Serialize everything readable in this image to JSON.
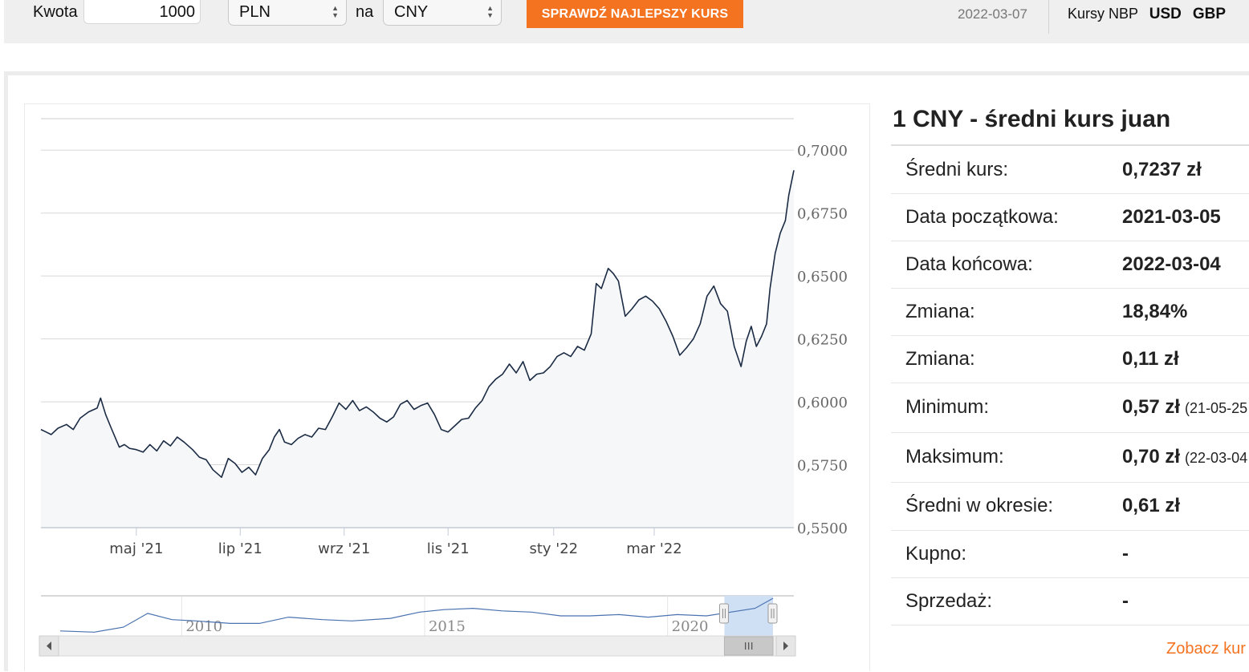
{
  "converter": {
    "amount_label": "Kwota",
    "amount_value": "1000",
    "from_currency": "PLN",
    "to_label": "na",
    "to_currency": "CNY",
    "check_button": "SPRAWDŹ NAJLEPSZY KURS",
    "date": "2022-03-07",
    "nbp_label": "Kursy NBP",
    "nbp_links": [
      "USD",
      "GBP"
    ]
  },
  "info": {
    "title": "1 CNY - średni kurs juan",
    "rows": [
      {
        "label": "Średni kurs:",
        "value": "0,7237 zł",
        "sub": ""
      },
      {
        "label": "Data początkowa:",
        "value": "2021-03-05",
        "sub": ""
      },
      {
        "label": "Data końcowa:",
        "value": "2022-03-04",
        "sub": ""
      },
      {
        "label": "Zmiana:",
        "value": "18,84%",
        "sub": ""
      },
      {
        "label": "Zmiana:",
        "value": "0,11 zł",
        "sub": ""
      },
      {
        "label": "Minimum:",
        "value": "0,57 zł",
        "sub": "(21-05-25"
      },
      {
        "label": "Maksimum:",
        "value": "0,70 zł",
        "sub": "(22-03-04"
      },
      {
        "label": "Średni w okresie:",
        "value": "0,61 zł",
        "sub": ""
      },
      {
        "label": "Kupno:",
        "value": "-",
        "sub": ""
      },
      {
        "label": "Sprzedaż:",
        "value": "-",
        "sub": ""
      }
    ],
    "see_more": "Zobacz kur"
  },
  "colors": {
    "accent": "#f47321",
    "line": "#1b2b44",
    "area": "#f5f7f8",
    "navigator_line": "#4a72b0",
    "navigator_selection": "#cfe0f5"
  },
  "chart_data": {
    "type": "line",
    "title": "",
    "xlabel": "",
    "ylabel": "",
    "ylim": [
      0.55,
      0.7125
    ],
    "y_ticks": [
      "0,5500",
      "0,5750",
      "0,6000",
      "0,6250",
      "0,6500",
      "0,6750",
      "0,7000"
    ],
    "x_ticks": [
      "maj '21",
      "lip '21",
      "wrz '21",
      "lis '21",
      "sty '22",
      "mar '22"
    ],
    "grid": true,
    "series": [
      {
        "values": [
          [
            0,
            0.589
          ],
          [
            3,
            0.588
          ],
          [
            6,
            0.587
          ],
          [
            10,
            0.5895
          ],
          [
            15,
            0.591
          ],
          [
            19,
            0.589
          ],
          [
            23,
            0.5935
          ],
          [
            28,
            0.596
          ],
          [
            33,
            0.5975
          ],
          [
            35,
            0.6015
          ],
          [
            38,
            0.595
          ],
          [
            41,
            0.59
          ],
          [
            46,
            0.582
          ],
          [
            49,
            0.583
          ],
          [
            52,
            0.5815
          ],
          [
            56,
            0.581
          ],
          [
            60,
            0.58
          ],
          [
            64,
            0.583
          ],
          [
            68,
            0.5805
          ],
          [
            72,
            0.5845
          ],
          [
            76,
            0.5825
          ],
          [
            80,
            0.586
          ],
          [
            84,
            0.584
          ],
          [
            89,
            0.581
          ],
          [
            93,
            0.578
          ],
          [
            97,
            0.577
          ],
          [
            101,
            0.573
          ],
          [
            106,
            0.57
          ],
          [
            110,
            0.5775
          ],
          [
            114,
            0.5755
          ],
          [
            118,
            0.572
          ],
          [
            122,
            0.574
          ],
          [
            126,
            0.571
          ],
          [
            130,
            0.5775
          ],
          [
            134,
            0.581
          ],
          [
            137,
            0.586
          ],
          [
            140,
            0.589
          ],
          [
            143,
            0.584
          ],
          [
            147,
            0.583
          ],
          [
            151,
            0.5855
          ],
          [
            155,
            0.587
          ],
          [
            159,
            0.586
          ],
          [
            163,
            0.5895
          ],
          [
            167,
            0.589
          ],
          [
            171,
            0.594
          ],
          [
            175,
            0.5995
          ],
          [
            179,
            0.597
          ],
          [
            183,
            0.6005
          ],
          [
            187,
            0.5965
          ],
          [
            191,
            0.598
          ],
          [
            195,
            0.596
          ],
          [
            199,
            0.5935
          ],
          [
            203,
            0.592
          ],
          [
            207,
            0.594
          ],
          [
            211,
            0.599
          ],
          [
            215,
            0.6005
          ],
          [
            219,
            0.597
          ],
          [
            223,
            0.5985
          ],
          [
            227,
            0.5995
          ],
          [
            231,
            0.595
          ],
          [
            235,
            0.589
          ],
          [
            239,
            0.588
          ],
          [
            243,
            0.5905
          ],
          [
            247,
            0.593
          ],
          [
            251,
            0.5935
          ],
          [
            255,
            0.5975
          ],
          [
            259,
            0.6005
          ],
          [
            263,
            0.606
          ],
          [
            267,
            0.609
          ],
          [
            271,
            0.611
          ],
          [
            275,
            0.615
          ],
          [
            279,
            0.6115
          ],
          [
            283,
            0.616
          ],
          [
            287,
            0.6085
          ],
          [
            291,
            0.611
          ],
          [
            295,
            0.6115
          ],
          [
            299,
            0.614
          ],
          [
            303,
            0.618
          ],
          [
            307,
            0.6195
          ],
          [
            311,
            0.618
          ],
          [
            315,
            0.622
          ],
          [
            319,
            0.6205
          ],
          [
            323,
            0.627
          ],
          [
            326,
            0.647
          ],
          [
            329,
            0.645
          ],
          [
            333,
            0.653
          ],
          [
            336,
            0.651
          ],
          [
            339,
            0.648
          ],
          [
            343,
            0.634
          ],
          [
            347,
            0.637
          ],
          [
            351,
            0.6405
          ],
          [
            355,
            0.642
          ],
          [
            359,
            0.64
          ],
          [
            363,
            0.637
          ],
          [
            367,
            0.632
          ],
          [
            371,
            0.626
          ],
          [
            375,
            0.6185
          ],
          [
            379,
            0.6215
          ],
          [
            383,
            0.625
          ],
          [
            387,
            0.631
          ],
          [
            391,
            0.642
          ],
          [
            395,
            0.646
          ],
          [
            399,
            0.639
          ],
          [
            403,
            0.636
          ],
          [
            407,
            0.622
          ],
          [
            411,
            0.614
          ],
          [
            414,
            0.624
          ],
          [
            417,
            0.63
          ],
          [
            420,
            0.622
          ],
          [
            423,
            0.626
          ],
          [
            426,
            0.631
          ],
          [
            428,
            0.645
          ],
          [
            431,
            0.659
          ],
          [
            434,
            0.667
          ],
          [
            437,
            0.672
          ],
          [
            439,
            0.682
          ],
          [
            442,
            0.692
          ]
        ]
      }
    ],
    "navigator": {
      "x_ticks": [
        "2010",
        "2015",
        "2020"
      ],
      "values": [
        [
          2007.5,
          0.44
        ],
        [
          2008.2,
          0.43
        ],
        [
          2008.8,
          0.47
        ],
        [
          2009.3,
          0.58
        ],
        [
          2009.8,
          0.53
        ],
        [
          2010.3,
          0.52
        ],
        [
          2011.0,
          0.5
        ],
        [
          2011.6,
          0.5
        ],
        [
          2012.2,
          0.55
        ],
        [
          2012.9,
          0.53
        ],
        [
          2013.5,
          0.52
        ],
        [
          2014.3,
          0.54
        ],
        [
          2014.9,
          0.59
        ],
        [
          2015.4,
          0.61
        ],
        [
          2016.0,
          0.62
        ],
        [
          2016.6,
          0.6
        ],
        [
          2017.2,
          0.59
        ],
        [
          2017.8,
          0.56
        ],
        [
          2018.4,
          0.56
        ],
        [
          2019.0,
          0.57
        ],
        [
          2019.6,
          0.55
        ],
        [
          2020.2,
          0.57
        ],
        [
          2020.8,
          0.56
        ],
        [
          2021.3,
          0.59
        ],
        [
          2021.8,
          0.62
        ],
        [
          2022.17,
          0.7
        ]
      ]
    }
  }
}
